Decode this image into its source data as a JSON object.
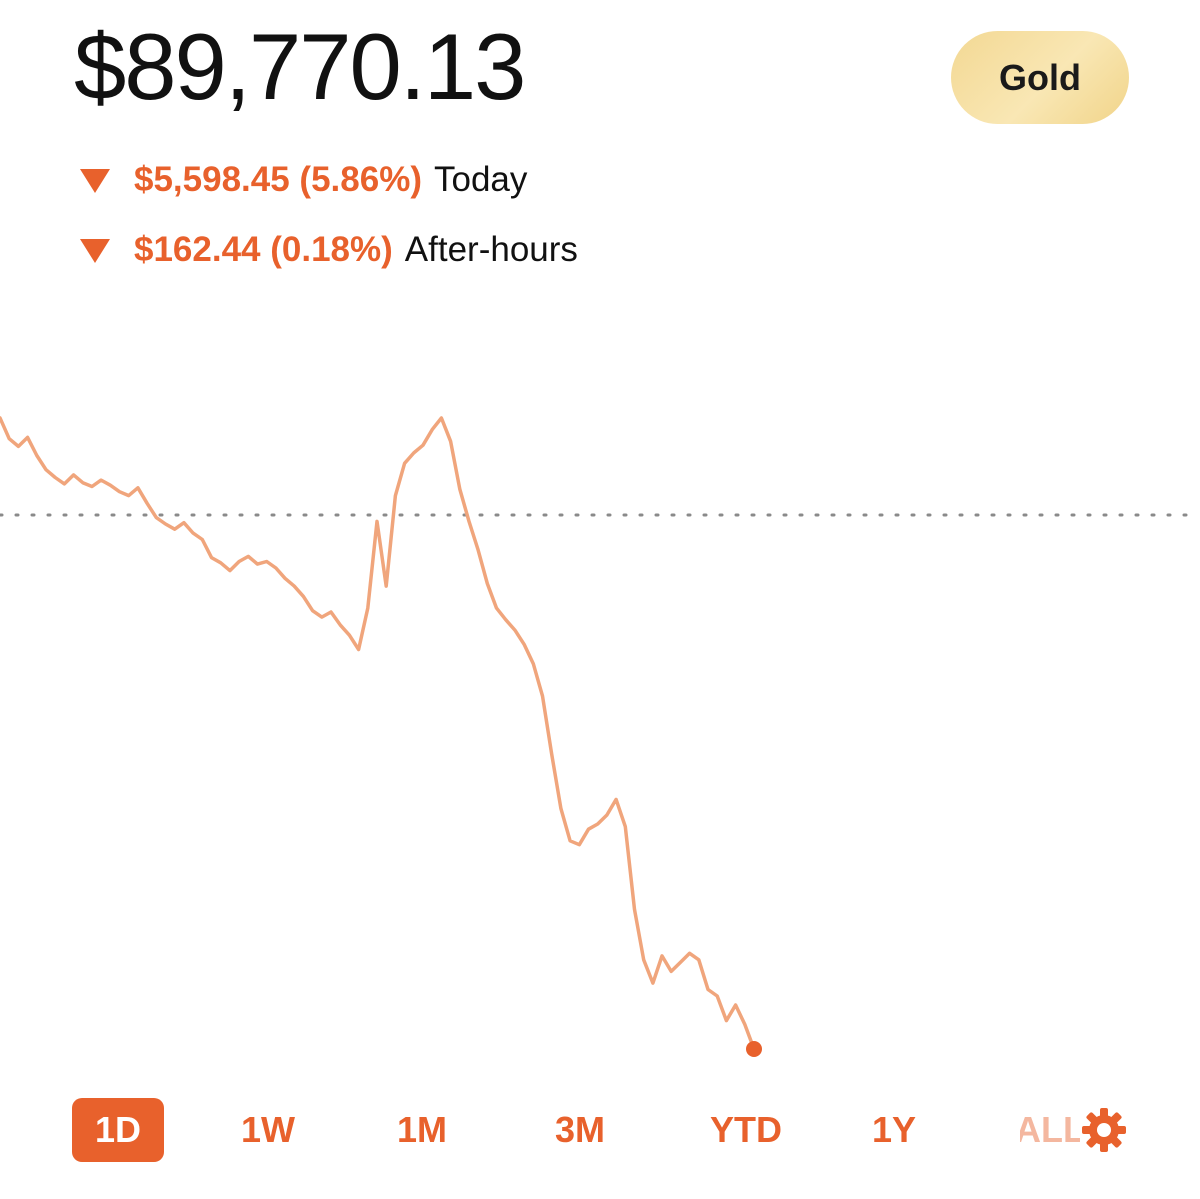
{
  "header": {
    "portfolio_value": "$89,770.13",
    "badge_label": "Gold"
  },
  "changes": {
    "today": {
      "direction_icon": "triangle-down-icon",
      "amount": "$5,598.45 (5.86%)",
      "label": "Today"
    },
    "after_hours": {
      "direction_icon": "triangle-down-icon",
      "amount": "$162.44 (0.18%)",
      "label": "After-hours"
    }
  },
  "colors": {
    "accent": "#e8612c",
    "line": "#f0a57c",
    "badge": "#f6dd9e",
    "reference_line": "#8a8a8a"
  },
  "chart_data": {
    "type": "line",
    "grid": false,
    "reference_line": "dotted horizontal (previous close)",
    "end_marker": "dot",
    "series": [
      {
        "values": [
          100,
          98.4,
          97.8,
          98.5,
          97.1,
          96,
          95.4,
          94.9,
          95.6,
          95,
          94.7,
          95.2,
          94.8,
          94.3,
          94,
          94.6,
          93.4,
          92.3,
          91.8,
          91.4,
          91.9,
          91.1,
          90.6,
          89.2,
          88.8,
          88.2,
          88.9,
          89.3,
          88.7,
          88.9,
          88.4,
          87.6,
          87,
          86.2,
          85.1,
          84.6,
          85,
          84,
          83.2,
          82.1,
          85.3,
          92,
          87,
          94,
          96.5,
          97.3,
          97.9,
          99.1,
          100,
          98.2,
          94.5,
          92,
          89.8,
          87.2,
          85.3,
          84.4,
          83.6,
          82.5,
          81,
          78.5,
          74,
          69.8,
          67.3,
          67,
          68.2,
          68.6,
          69.3,
          70.5,
          68.4,
          62,
          58.1,
          56.3,
          58.4,
          57.2,
          57.9,
          58.6,
          58.1,
          55.8,
          55.3,
          53.4,
          54.6,
          53.1,
          51.2
        ]
      }
    ]
  },
  "ranges": {
    "items": [
      "1D",
      "1W",
      "1M",
      "3M",
      "YTD",
      "1Y",
      "ALL"
    ],
    "selected": "1D"
  },
  "icons": {
    "settings": "gear-icon"
  }
}
